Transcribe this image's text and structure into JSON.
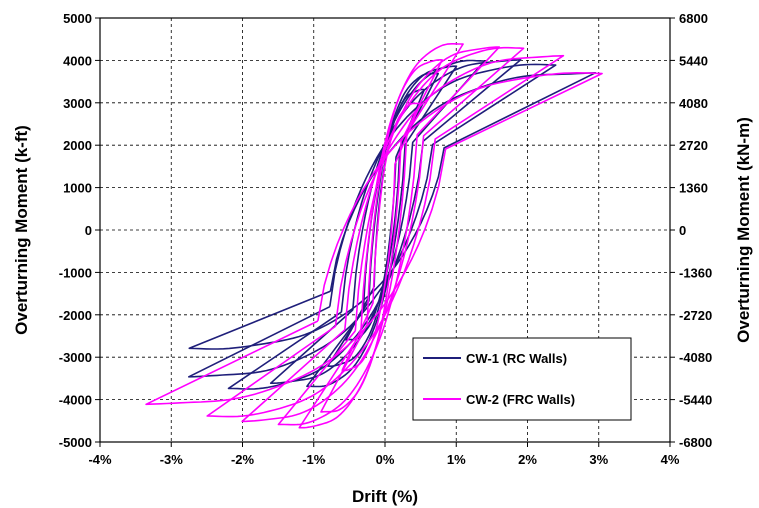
{
  "chart_data": {
    "type": "line",
    "title": "",
    "xlabel": "Drift (%)",
    "ylabel": "Overturning Moment (k-ft)",
    "y2label": "Overturning Moment (kN-m)",
    "xlim": [
      -4,
      4
    ],
    "ylim": [
      -5000,
      5000
    ],
    "y2lim": [
      -6800,
      6800
    ],
    "grid": true,
    "legend_position": "bottom-right",
    "x_ticks": [
      "-4%",
      "-3%",
      "-2%",
      "-1%",
      "0%",
      "1%",
      "2%",
      "3%",
      "4%"
    ],
    "y_ticks": [
      "-5000",
      "-4000",
      "-3000",
      "-2000",
      "-1000",
      "0",
      "1000",
      "2000",
      "3000",
      "4000",
      "5000"
    ],
    "y2_ticks": [
      "-6800",
      "-5440",
      "-4080",
      "-2720",
      "-1360",
      "0",
      "1360",
      "2720",
      "4080",
      "5440",
      "6800"
    ],
    "series": [
      {
        "name": "CW-1 (RC Walls)",
        "color": "#1f1f7a",
        "cycles": [
          {
            "pos": [
              0.55,
              3300
            ],
            "neg": [
              -0.55,
              -2600
            ]
          },
          {
            "pos": [
              0.75,
              3700
            ],
            "neg": [
              -0.8,
              -3200
            ]
          },
          {
            "pos": [
              1.0,
              3850
            ],
            "neg": [
              -1.1,
              -3700
            ]
          },
          {
            "pos": [
              1.4,
              4000
            ],
            "neg": [
              -1.6,
              -3600
            ]
          },
          {
            "pos": [
              1.9,
              4000
            ],
            "neg": [
              -2.2,
              -3750
            ]
          },
          {
            "pos": [
              2.4,
              3900
            ],
            "neg": [
              -2.75,
              -3450
            ]
          },
          {
            "pos": [
              2.95,
              3700
            ],
            "neg": [
              -2.75,
              -2800
            ]
          }
        ]
      },
      {
        "name": "CW-2 (FRC Walls)",
        "color": "#ff00ff",
        "cycles": [
          {
            "pos": [
              0.5,
              3000
            ],
            "neg": [
              -0.6,
              -3300
            ]
          },
          {
            "pos": [
              0.8,
              4000
            ],
            "neg": [
              -0.9,
              -4300
            ]
          },
          {
            "pos": [
              1.1,
              4400
            ],
            "neg": [
              -1.2,
              -4650
            ]
          },
          {
            "pos": [
              1.6,
              4300
            ],
            "neg": [
              -1.5,
              -4600
            ]
          },
          {
            "pos": [
              1.95,
              4300
            ],
            "neg": [
              -2.0,
              -4500
            ]
          },
          {
            "pos": [
              2.5,
              4100
            ],
            "neg": [
              -2.5,
              -4400
            ]
          },
          {
            "pos": [
              3.05,
              3700
            ],
            "neg": [
              -3.35,
              -4100
            ]
          }
        ]
      }
    ]
  }
}
